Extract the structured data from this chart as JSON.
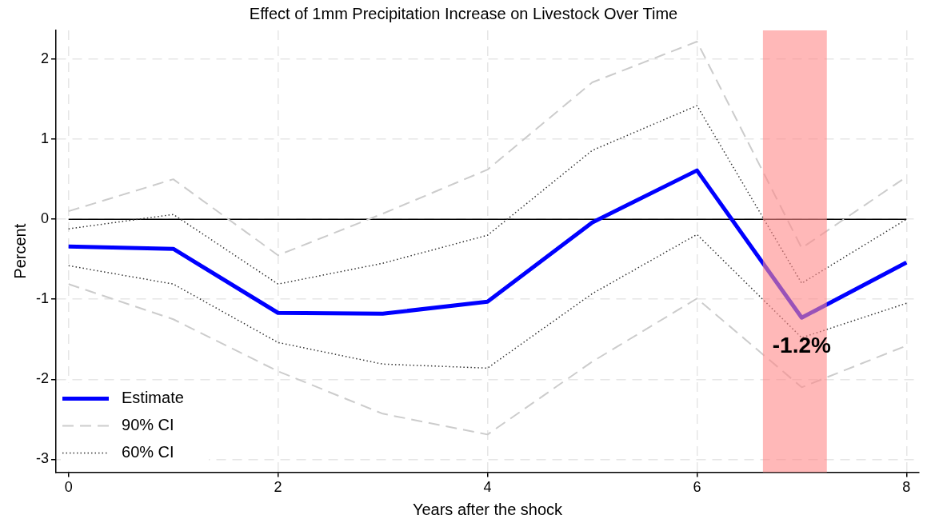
{
  "chart_data": {
    "type": "line",
    "title": "Effect of 1mm Precipitation Increase on Livestock Over Time",
    "xlabel": "Years after the shock",
    "ylabel": "Percent",
    "x": [
      0,
      1,
      2,
      3,
      4,
      5,
      6,
      7,
      8
    ],
    "series": [
      {
        "name": "Estimate",
        "color": "#0000ff",
        "line_style": "solid",
        "values": [
          -0.34,
          -0.37,
          -1.17,
          -1.18,
          -1.03,
          -0.04,
          0.61,
          -1.23,
          -0.54
        ]
      },
      {
        "name": "90% CI",
        "color": "#cccccc",
        "line_style": "dashed",
        "values": [
          0.1,
          0.5,
          -0.45,
          0.07,
          0.62,
          1.71,
          2.22,
          -0.36,
          0.53
        ]
      },
      {
        "color": "#cccccc",
        "line_style": "dashed",
        "values": [
          -0.81,
          -1.25,
          -1.9,
          -2.43,
          -2.69,
          -1.78,
          -0.99,
          -2.1,
          -1.58
        ]
      },
      {
        "name": "60% CI",
        "color": "#333333",
        "line_style": "dotted",
        "values": [
          -0.12,
          0.06,
          -0.81,
          -0.55,
          -0.2,
          0.86,
          1.42,
          -0.8,
          0
        ]
      },
      {
        "color": "#333333",
        "line_style": "dotted",
        "values": [
          -0.58,
          -0.81,
          -1.54,
          -1.81,
          -1.86,
          -0.93,
          -0.19,
          -1.48,
          -1.05
        ]
      }
    ],
    "xlim": [
      -0.12,
      8.12
    ],
    "xticks": [
      0,
      2,
      4,
      6,
      8
    ],
    "ylim": [
      -3.16,
      2.36
    ],
    "yticks": [
      -3,
      -2,
      -1,
      0,
      1,
      2
    ],
    "ref_lines": [
      {
        "axis": "y",
        "value": 0,
        "color": "#000000"
      }
    ],
    "bands": [
      {
        "axis": "x",
        "from": 6.63,
        "to": 7.24,
        "color": "#ff8888"
      }
    ],
    "annotations": [
      {
        "text": "-1.2%",
        "x": 7,
        "y": -1.23
      }
    ],
    "grid": true,
    "legend": "bottom left",
    "marker": "none"
  }
}
